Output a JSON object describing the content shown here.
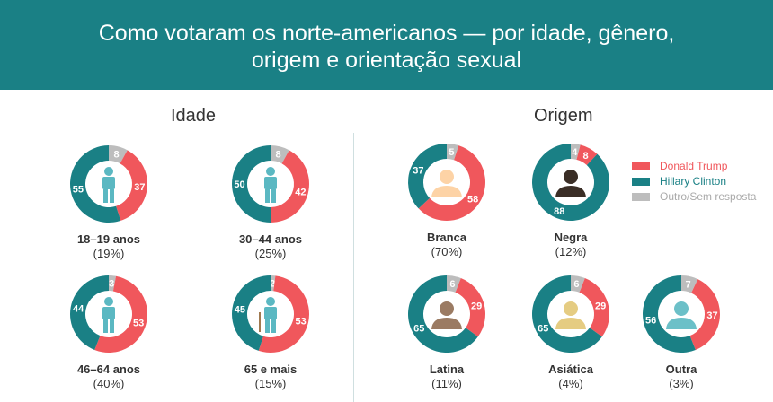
{
  "header": {
    "title_line1": "Como votaram os norte-americanos — por idade, gênero,",
    "title_line2": "origem e orientação sexual"
  },
  "colors": {
    "trump": "#f0575c",
    "clinton": "#1a8085",
    "other": "#bdbdbd"
  },
  "legend": [
    {
      "label": "Donald Trump",
      "color": "#f0575c"
    },
    {
      "label": "Hillary Clinton",
      "color": "#1a8085"
    },
    {
      "label": "Outro/Sem resposta",
      "color": "#bdbdbd"
    }
  ],
  "chart_data": [
    {
      "type": "pie",
      "title": "Idade",
      "series_order": [
        "Outro/Sem resposta",
        "Donald Trump",
        "Hillary Clinton"
      ],
      "groups": [
        {
          "name": "18–19 anos",
          "share": "(19%)",
          "other": 8,
          "trump": 37,
          "clinton": 55,
          "icon": "young-person-icon"
        },
        {
          "name": "30–44 anos",
          "share": "(25%)",
          "other": 8,
          "trump": 42,
          "clinton": 50,
          "icon": "businessman-icon"
        },
        {
          "name": "46–64 anos",
          "share": "(40%)",
          "other": 3,
          "trump": 53,
          "clinton": 44,
          "icon": "man-icon"
        },
        {
          "name": "65 e mais",
          "share": "(15%)",
          "other": 2,
          "trump": 53,
          "clinton": 45,
          "icon": "elderly-person-icon"
        }
      ]
    },
    {
      "type": "pie",
      "title": "Origem",
      "series_order": [
        "Outro/Sem resposta",
        "Donald Trump",
        "Hillary Clinton"
      ],
      "groups": [
        {
          "name": "Branca",
          "share": "(70%)",
          "other": 5,
          "trump": 58,
          "clinton": 37,
          "icon": "white-person-icon",
          "skin": "#fdd3a6"
        },
        {
          "name": "Negra",
          "share": "(12%)",
          "other": 4,
          "trump": 8,
          "clinton": 88,
          "icon": "black-person-icon",
          "skin": "#3a2e26"
        },
        {
          "name": "Latina",
          "share": "(11%)",
          "other": 6,
          "trump": 29,
          "clinton": 65,
          "icon": "latino-person-icon",
          "skin": "#9b7b63"
        },
        {
          "name": "Asiática",
          "share": "(4%)",
          "other": 6,
          "trump": 29,
          "clinton": 65,
          "icon": "asian-person-icon",
          "skin": "#e5cc82"
        },
        {
          "name": "Outra",
          "share": "(3%)",
          "other": 7,
          "trump": 37,
          "clinton": 56,
          "icon": "other-person-icon",
          "skin": "#6cc0c8"
        }
      ]
    }
  ]
}
